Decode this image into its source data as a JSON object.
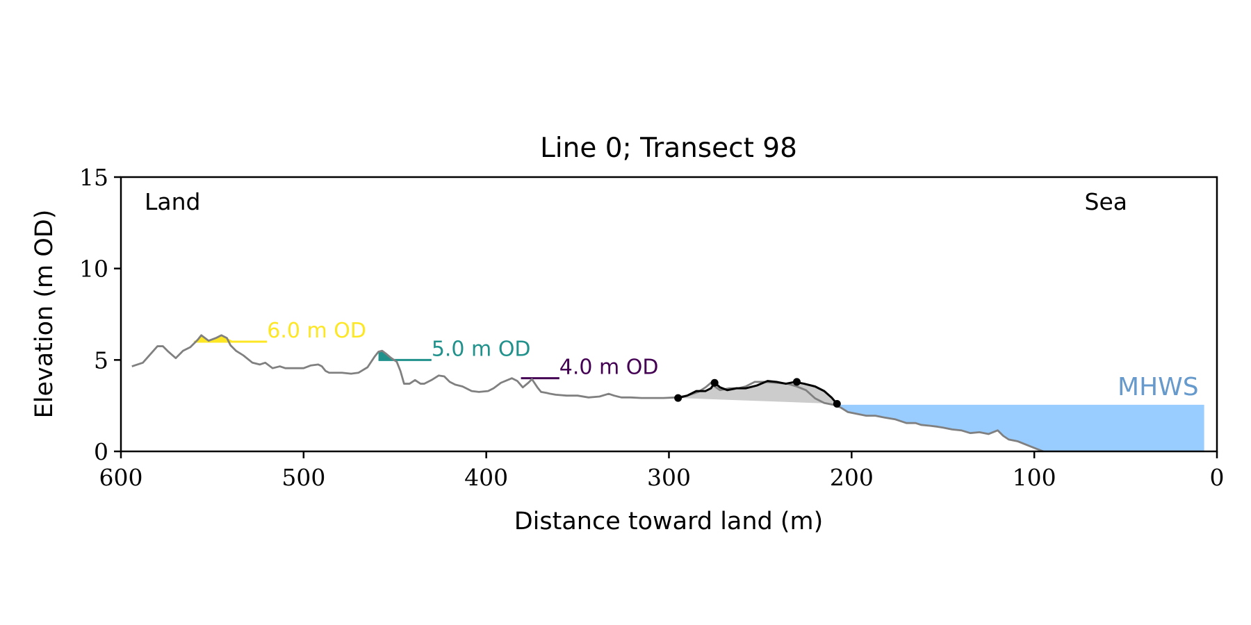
{
  "chart_data": {
    "type": "line",
    "title": "Line 0; Transect 98",
    "xlabel": "Distance toward land (m)",
    "ylabel": "Elevation (m OD)",
    "xlim": [
      600,
      0
    ],
    "ylim": [
      0,
      15
    ],
    "x_inverted": true,
    "xticks": [
      600,
      500,
      400,
      300,
      200,
      100,
      0
    ],
    "yticks": [
      0,
      5,
      10,
      15
    ],
    "grid": false,
    "legend": "none",
    "corner_labels": {
      "left": "Land",
      "right": "Sea"
    },
    "mhws": {
      "label": "MHWS",
      "level": 2.55,
      "x_from": 207,
      "x_to": 7,
      "color": "#99ccff",
      "label_color": "#6699cc"
    },
    "series": [
      {
        "role": "profile",
        "color": "#808080",
        "x": [
          594,
          588,
          584,
          580,
          577,
          574,
          570,
          566,
          562,
          558,
          556,
          552,
          548,
          545,
          542,
          540,
          537,
          533,
          528,
          524,
          521,
          517,
          513,
          510,
          506,
          500,
          496,
          492,
          490,
          488,
          486,
          483,
          479,
          474,
          470,
          465,
          461,
          459,
          457,
          455,
          452,
          449,
          447,
          445,
          442,
          439,
          436,
          434,
          430,
          426,
          423,
          420,
          417,
          413,
          408,
          404,
          399,
          396,
          392,
          386,
          383,
          380,
          377,
          375,
          372,
          370,
          367,
          365,
          362,
          356,
          350,
          344,
          338,
          333,
          330,
          326,
          321,
          315,
          309,
          303,
          296,
          290,
          284,
          280,
          277,
          275,
          272,
          267,
          262,
          258,
          253,
          247,
          241,
          235,
          230,
          225,
          220,
          215,
          210,
          206,
          202,
          197,
          192,
          187,
          182,
          176,
          170,
          165,
          162,
          157,
          153,
          150,
          145,
          140,
          135,
          130,
          125,
          120,
          117,
          114,
          109,
          104,
          99,
          95
        ],
        "y": [
          4.65,
          4.85,
          5.3,
          5.75,
          5.75,
          5.45,
          5.1,
          5.5,
          5.7,
          6.1,
          6.35,
          6.05,
          6.2,
          6.35,
          6.2,
          5.8,
          5.5,
          5.25,
          4.85,
          4.75,
          4.85,
          4.55,
          4.65,
          4.55,
          4.55,
          4.55,
          4.7,
          4.75,
          4.65,
          4.4,
          4.3,
          4.3,
          4.3,
          4.25,
          4.3,
          4.6,
          5.2,
          5.45,
          5.5,
          5.35,
          5.1,
          4.9,
          4.4,
          3.7,
          3.7,
          3.9,
          3.7,
          3.7,
          3.9,
          4.15,
          4.1,
          3.8,
          3.65,
          3.55,
          3.3,
          3.25,
          3.3,
          3.45,
          3.75,
          4.0,
          3.85,
          3.5,
          3.75,
          3.95,
          3.5,
          3.25,
          3.2,
          3.15,
          3.1,
          3.05,
          3.05,
          2.95,
          3.0,
          3.15,
          3.05,
          2.95,
          2.95,
          2.92,
          2.92,
          2.92,
          2.95,
          3.05,
          3.25,
          3.5,
          3.75,
          3.55,
          3.35,
          3.45,
          3.45,
          3.55,
          3.8,
          3.8,
          3.75,
          3.7,
          3.55,
          3.35,
          2.9,
          2.65,
          2.55,
          2.4,
          2.15,
          2.05,
          1.95,
          1.95,
          1.85,
          1.75,
          1.55,
          1.55,
          1.45,
          1.4,
          1.35,
          1.3,
          1.2,
          1.15,
          1.0,
          1.05,
          0.95,
          1.15,
          0.85,
          0.65,
          0.55,
          0.35,
          0.15,
          0.0
        ]
      },
      {
        "role": "dune",
        "color": "#000000",
        "x": [
          295,
          290,
          285,
          280,
          277,
          275,
          272,
          268,
          263,
          258,
          252,
          246,
          241,
          236,
          231,
          226,
          220,
          215,
          211,
          208
        ],
        "y": [
          2.92,
          3.05,
          3.3,
          3.3,
          3.45,
          3.75,
          3.5,
          3.35,
          3.45,
          3.45,
          3.6,
          3.85,
          3.8,
          3.7,
          3.8,
          3.7,
          3.55,
          3.3,
          2.95,
          2.6
        ]
      }
    ],
    "dune_points": [
      {
        "x": 295,
        "y": 2.92
      },
      {
        "x": 275,
        "y": 3.75
      },
      {
        "x": 230,
        "y": 3.8
      },
      {
        "x": 208,
        "y": 2.6
      }
    ],
    "dune_base": {
      "x_from": 295,
      "y_from": 2.92,
      "x_to": 208,
      "y_to": 2.6,
      "fill": "#cccccc"
    },
    "contours": [
      {
        "label": "6.0 m OD",
        "level": 6.0,
        "x_from": 560,
        "x_to": 520,
        "color": "#fde725",
        "fill_from": 560,
        "fill_to": 538
      },
      {
        "label": "5.0 m OD",
        "level": 5.0,
        "x_from": 459,
        "x_to": 430,
        "color": "#21918c",
        "fill_from": 459,
        "fill_to": 451
      },
      {
        "label": "4.0 m OD",
        "level": 4.0,
        "x_from": 381,
        "x_to": 360,
        "color": "#440154",
        "fill_from": 381,
        "fill_to": 378
      }
    ]
  }
}
